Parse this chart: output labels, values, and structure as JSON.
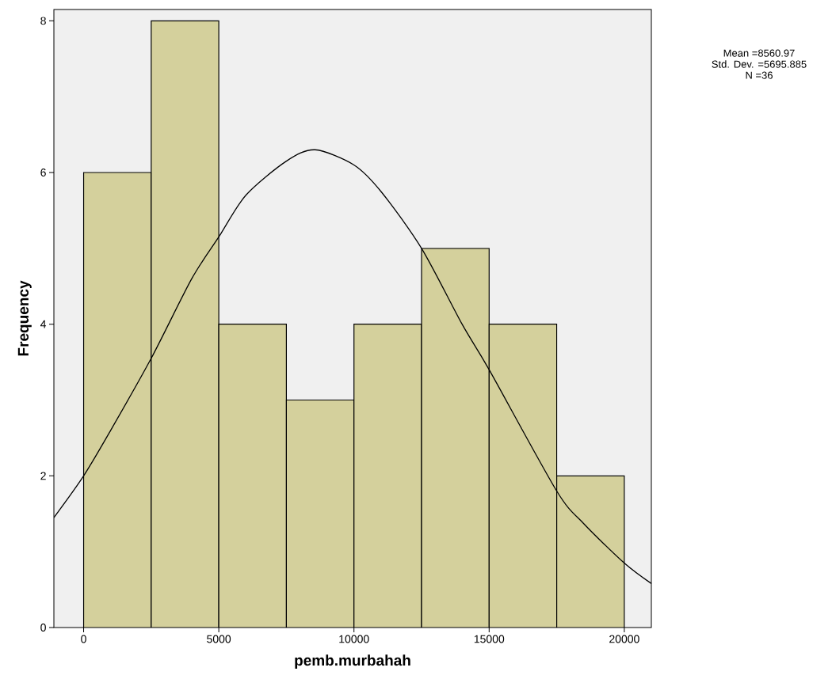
{
  "chart_data": {
    "type": "histogram",
    "xlabel": "pemb.murbahah",
    "ylabel": "Frequency",
    "bins": [
      0,
      2500,
      5000,
      7500,
      10000,
      12500,
      15000,
      17500,
      20000
    ],
    "values": [
      6,
      8,
      4,
      3,
      4,
      5,
      4,
      2
    ],
    "color": "#d4d09c",
    "series": [
      {
        "type": "line",
        "color": "#000000",
        "x": [
          -1100,
          0,
          1000,
          2500,
          4000,
          5000,
          6000,
          7500,
          8560,
          10000,
          11000,
          12500,
          14000,
          15000,
          17500,
          18500,
          20000,
          21000
        ],
        "values": [
          1.45,
          2.0,
          2.6,
          3.55,
          4.6,
          5.15,
          5.7,
          6.15,
          6.3,
          6.1,
          5.75,
          5.0,
          4.0,
          3.4,
          1.8,
          1.37,
          0.85,
          0.58
        ]
      }
    ],
    "xlim": [
      -1100,
      21000
    ],
    "ylim": [
      0,
      8.15
    ],
    "xticks": [
      0,
      5000,
      10000,
      15000,
      20000
    ],
    "yticks": [
      0,
      2,
      4,
      6,
      8
    ],
    "grid": false,
    "annotations": [
      "Mean =8560.97",
      "Std. Dev. =5695.885",
      "N =36"
    ]
  }
}
